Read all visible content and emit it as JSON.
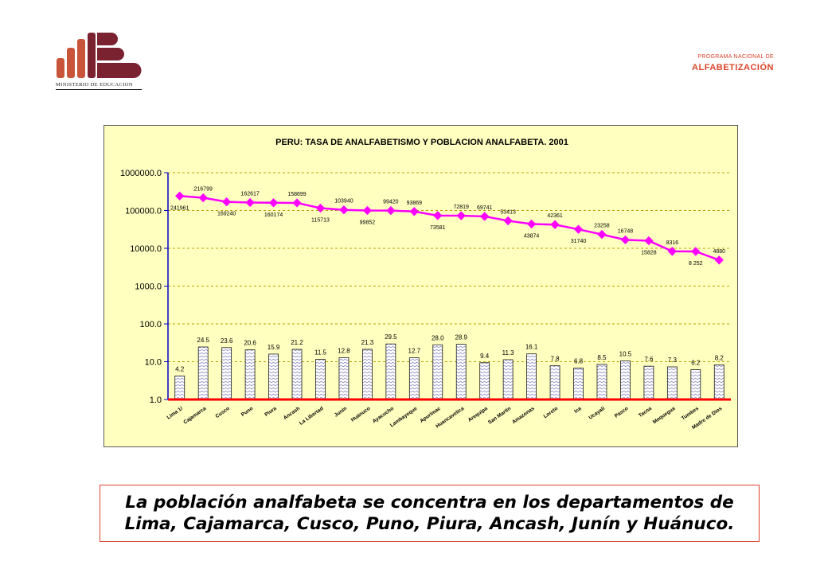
{
  "header": {
    "logo_caption": "MINISTERIO DE EDUCACION",
    "program_line1": "PROGRAMA NACIONAL DE",
    "program_line2": "ALFABETIZACIÓN"
  },
  "caption": {
    "line1": "La población analfabeta se concentra en los departamentos de",
    "line2": "Lima, Cajamarca, Cusco, Puno, Piura, Ancash, Junín y Huánuco."
  },
  "chart_data": {
    "type": "bar+line",
    "title": "PERU: TASA DE ANALFABETISMO Y POBLACION ANALFABETA. 2001",
    "y_scale": "log",
    "ylim": [
      1,
      1000000
    ],
    "y_ticks": [
      "1.0",
      "10.0",
      "100.0",
      "1000.0",
      "10000.0",
      "100000.0",
      "1000000.0"
    ],
    "grid": true,
    "categories": [
      "Lima 1/",
      "Cajamarca",
      "Cusco",
      "Puno",
      "Piura",
      "Ancash",
      "La Libertad",
      "Junín",
      "Huánuco",
      "Ayacucho",
      "Lambayeque",
      "Apurímac",
      "Huancavelica",
      "Arequipa",
      "San Martín",
      "Amazonas",
      "Loreto",
      "Ica",
      "Ucayali",
      "Pasco",
      "Tacna",
      "Moquegua",
      "Tumbes",
      "Madre de Dios"
    ],
    "bar_values": [
      4.2,
      24.5,
      23.6,
      20.6,
      15.9,
      21.2,
      11.5,
      12.8,
      21.3,
      29.5,
      12.7,
      28.0,
      28.9,
      9.4,
      11.3,
      16.1,
      7.8,
      6.8,
      8.5,
      10.5,
      7.6,
      7.3,
      6.2,
      8.2
    ],
    "bar_labels": [
      "4.2",
      "24.5",
      "23.6",
      "20.6",
      "15.9",
      "21.2",
      "11.5",
      "12.8",
      "21.3",
      "29.5",
      "12.7",
      "28.0",
      "28.9",
      "9.4",
      "11.3",
      "16.1",
      "7.8",
      "6.8",
      "8.5",
      "10.5",
      "7.6",
      "7.3",
      "6.2",
      "8.2"
    ],
    "line_values": [
      241961,
      216799,
      169240,
      162617,
      160174,
      158699,
      115713,
      103940,
      99852,
      99420,
      93869,
      73581,
      72819,
      69741,
      53413,
      43874,
      42361,
      31740,
      23258,
      16748,
      15828,
      8316,
      8252,
      4880
    ],
    "line_labels": [
      "241961",
      "216799",
      "169240",
      "162617",
      "160174",
      "158699",
      "115713",
      "103940",
      "99852",
      "99420",
      "93869",
      "73581",
      "72819",
      "69741",
      "53413",
      "43874",
      "42361",
      "31740",
      "23258",
      "16748",
      "15828",
      "8316",
      "8 252",
      "4880"
    ],
    "line_label_pos": [
      "below",
      "above",
      "below",
      "above",
      "below",
      "above",
      "below",
      "above",
      "below",
      "above",
      "above",
      "below",
      "above",
      "above",
      "above",
      "below",
      "above",
      "below",
      "above",
      "above",
      "below",
      "above",
      "below",
      "above"
    ],
    "colors": {
      "line": "#ff00ff",
      "bar_fill": "#ffffff",
      "bar_stroke": "#1a1a1a",
      "axis": "#ff0000",
      "y_axis": "#0000cc",
      "grid": "#b8a000",
      "background": "#ffffc0"
    }
  }
}
